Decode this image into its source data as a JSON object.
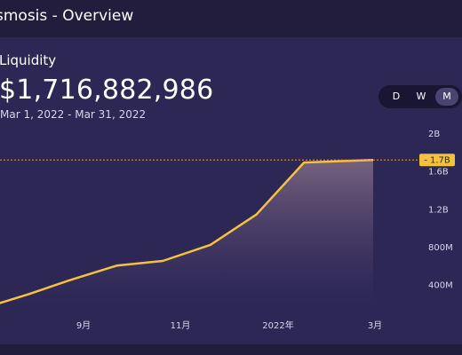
{
  "header": {
    "title": "smosis - Overview"
  },
  "metric": {
    "label": "Liquidity",
    "value": "$1,716,882,986",
    "range": "Mar 1, 2022 - Mar 31, 2022"
  },
  "range_toggle": {
    "options": [
      "D",
      "W",
      "M"
    ],
    "selected": "M"
  },
  "colors": {
    "line": "#f5c23f",
    "current_value_line": "#e8914a",
    "badge": "#f5c23f",
    "area_top": "#7a6580",
    "area_bottom": "#2d2756"
  },
  "chart_data": {
    "type": "area",
    "x_ticks": [
      "9月",
      "11月",
      "2022年",
      "3月"
    ],
    "y_ticks": [
      "400M",
      "800M",
      "1.2B",
      "1.6B",
      "2B"
    ],
    "ylim": [
      200000000,
      2000000000
    ],
    "current_value_label": "1.7B",
    "current_value": 1716882986,
    "series": [
      {
        "points": [
          {
            "x": "2021-07-01",
            "y": 200000000
          },
          {
            "x": "2021-07-20",
            "y": 300000000
          },
          {
            "x": "2021-08-15",
            "y": 445000000
          },
          {
            "x": "2021-09-15",
            "y": 600000000
          },
          {
            "x": "2021-10-15",
            "y": 650000000
          },
          {
            "x": "2021-11-15",
            "y": 820000000
          },
          {
            "x": "2021-12-15",
            "y": 1140000000
          },
          {
            "x": "2022-01-15",
            "y": 1690000000
          },
          {
            "x": "2022-03-01",
            "y": 1716882986
          }
        ]
      }
    ],
    "grid": false
  }
}
